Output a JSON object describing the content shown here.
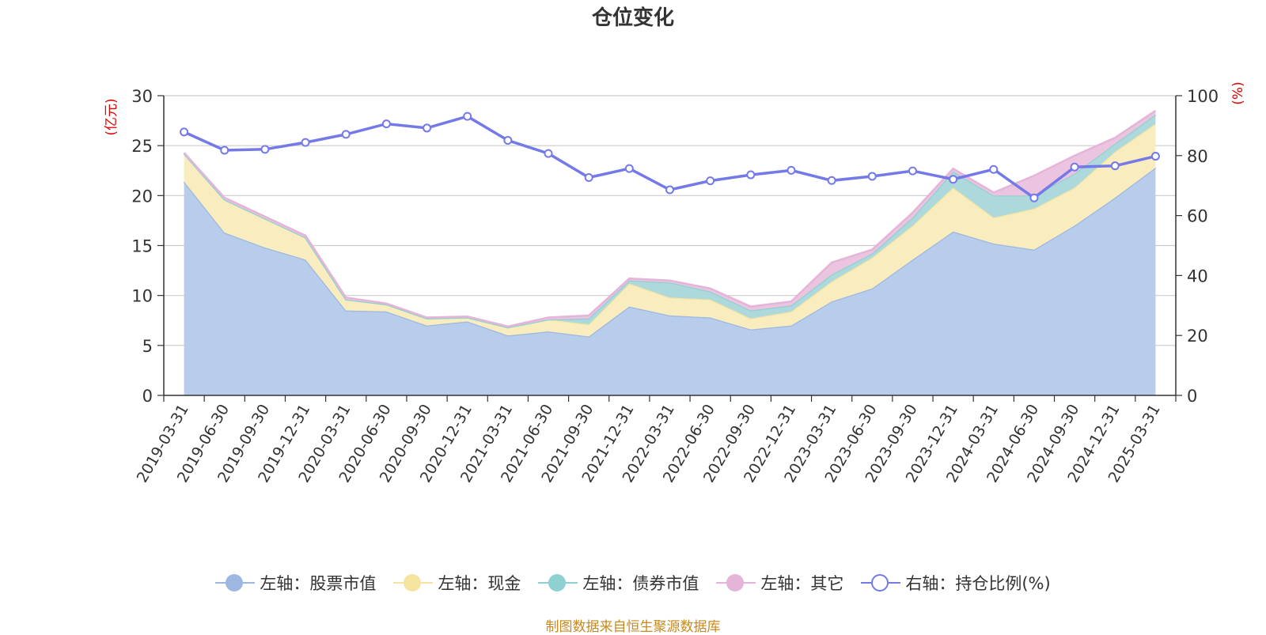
{
  "title": "仓位变化",
  "source_note": "制图数据来自恒生聚源数据库",
  "chart_data": {
    "type": "area",
    "categories": [
      "2019-03-31",
      "2019-06-30",
      "2019-09-30",
      "2019-12-31",
      "2020-03-31",
      "2020-06-30",
      "2020-09-30",
      "2020-12-31",
      "2021-03-31",
      "2021-06-30",
      "2021-09-30",
      "2021-12-31",
      "2022-03-31",
      "2022-06-30",
      "2022-09-30",
      "2022-12-31",
      "2023-03-31",
      "2023-06-30",
      "2023-09-30",
      "2023-12-31",
      "2024-03-31",
      "2024-06-30",
      "2024-09-30",
      "2024-12-31",
      "2025-03-31"
    ],
    "y_left": {
      "unit": "(亿元)",
      "ticks": [
        "0",
        "5",
        "10",
        "15",
        "20",
        "25",
        "30"
      ],
      "range": [
        0,
        30
      ]
    },
    "y_right": {
      "unit": "(%)",
      "ticks": [
        "0",
        "20",
        "40",
        "60",
        "80",
        "100"
      ],
      "range": [
        0,
        100
      ]
    },
    "grid": true,
    "legend_position": "bottom",
    "series": [
      {
        "name": "左轴：股票市值",
        "axis": "left",
        "stacked": true,
        "color": "#9db7e0",
        "fill": "#b8cdeb",
        "values": [
          21.4,
          16.3,
          14.8,
          13.6,
          8.5,
          8.4,
          7.0,
          7.4,
          6.0,
          6.4,
          5.9,
          8.9,
          8.0,
          7.8,
          6.6,
          7.0,
          9.4,
          10.7,
          13.6,
          16.4,
          15.2,
          14.6,
          17.0,
          19.8,
          22.8
        ]
      },
      {
        "name": "左轴：现金",
        "axis": "left",
        "stacked": true,
        "color": "#f5e3a0",
        "fill": "#f9edbf",
        "values": [
          2.8,
          3.3,
          2.9,
          2.2,
          1.1,
          0.7,
          0.7,
          0.4,
          0.8,
          1.2,
          1.2,
          2.3,
          1.8,
          1.8,
          1.1,
          1.4,
          2.0,
          3.1,
          3.4,
          4.4,
          2.6,
          4.1,
          3.8,
          4.6,
          4.4
        ]
      },
      {
        "name": "左轴：债券市值",
        "axis": "left",
        "stacked": true,
        "color": "#8fd1d1",
        "fill": "#add9dc",
        "values": [
          0,
          0,
          0,
          0,
          0,
          0,
          0,
          0,
          0,
          0,
          0.6,
          0.3,
          1.5,
          0.8,
          0.8,
          0.6,
          0.7,
          0.4,
          0.8,
          1.6,
          2.2,
          1.3,
          1.4,
          0.8,
          0.9
        ]
      },
      {
        "name": "左轴：其它",
        "axis": "left",
        "stacked": true,
        "color": "#e4b4d9",
        "fill": "#ebc4df",
        "values": [
          0.1,
          0.2,
          0.2,
          0.2,
          0.2,
          0.1,
          0.1,
          0.1,
          0.1,
          0.2,
          0.3,
          0.2,
          0.2,
          0.3,
          0.4,
          0.4,
          1.2,
          0.4,
          0.5,
          0.3,
          0.3,
          2.0,
          1.8,
          0.6,
          0.4
        ]
      },
      {
        "name": "右轴：持仓比例(%)",
        "axis": "right",
        "type": "line",
        "color": "#7479e8",
        "values": [
          87.9,
          81.8,
          82.1,
          84.4,
          87.1,
          90.6,
          89.2,
          93.1,
          85.1,
          80.7,
          72.7,
          75.7,
          68.6,
          71.6,
          73.6,
          75.1,
          71.7,
          73.1,
          74.9,
          72.1,
          75.4,
          65.9,
          76.2,
          76.6,
          79.8
        ]
      }
    ]
  }
}
